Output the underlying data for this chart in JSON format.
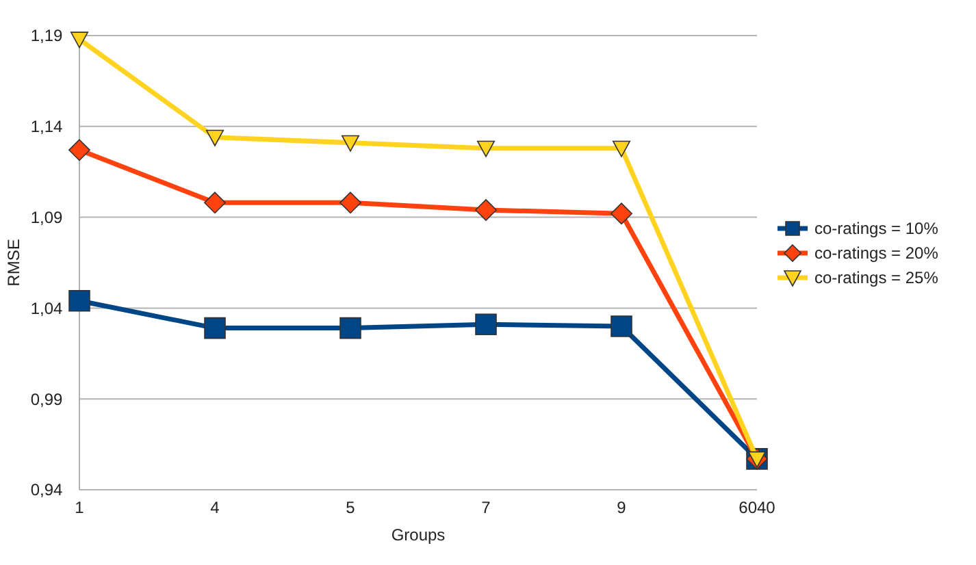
{
  "chart_data": {
    "type": "line",
    "xlabel": "Groups",
    "ylabel": "RMSE",
    "categories": [
      "1",
      "4",
      "5",
      "7",
      "9",
      "6040"
    ],
    "series": [
      {
        "name": "co-ratings = 10%",
        "color": "#004586",
        "marker": "square",
        "values": [
          1.044,
          1.029,
          1.029,
          1.031,
          1.03,
          0.957
        ]
      },
      {
        "name": "co-ratings = 20%",
        "color": "#ff420e",
        "marker": "diamond",
        "values": [
          1.127,
          1.098,
          1.098,
          1.094,
          1.092,
          0.957
        ]
      },
      {
        "name": "co-ratings = 25%",
        "color": "#ffd320",
        "marker": "triangle",
        "values": [
          1.188,
          1.134,
          1.131,
          1.128,
          1.128,
          0.957
        ]
      }
    ],
    "ylim": [
      0.94,
      1.19
    ],
    "yticks": [
      {
        "value": 0.94,
        "label": "0,94"
      },
      {
        "value": 0.99,
        "label": "0,99"
      },
      {
        "value": 1.04,
        "label": "1,04"
      },
      {
        "value": 1.09,
        "label": "1,09"
      },
      {
        "value": 1.14,
        "label": "1,14"
      },
      {
        "value": 1.19,
        "label": "1,19"
      }
    ],
    "grid": "y",
    "legend": "right",
    "line_style": "solid"
  }
}
